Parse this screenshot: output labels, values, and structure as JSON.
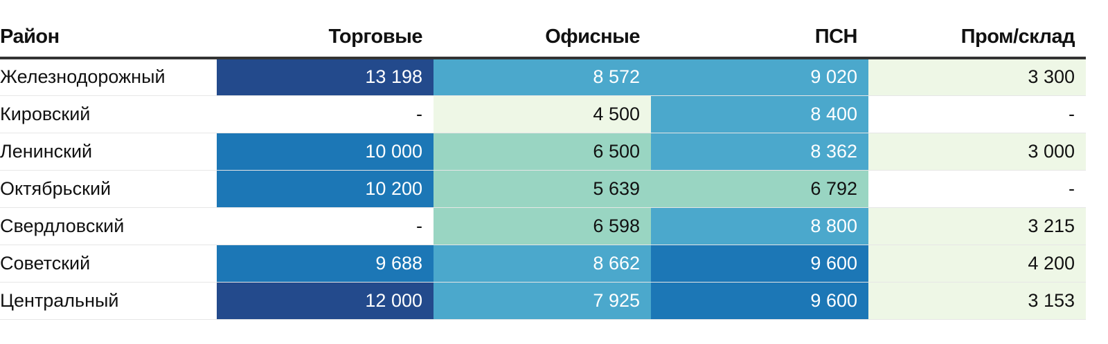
{
  "chart_data": {
    "type": "heatmap",
    "columns": [
      "Район",
      "Торговые",
      "Офисные",
      "ПСН",
      "Пром/склад"
    ],
    "rows": [
      {
        "label": "Железнодорожный",
        "values": [
          13198,
          8572,
          9020,
          3300
        ],
        "display": [
          "13 198",
          "8 572",
          "9 020",
          "3 300"
        ]
      },
      {
        "label": "Кировский",
        "values": [
          null,
          4500,
          8400,
          null
        ],
        "display": [
          "-",
          "4 500",
          "8 400",
          "-"
        ]
      },
      {
        "label": "Ленинский",
        "values": [
          10000,
          6500,
          8362,
          3000
        ],
        "display": [
          "10 000",
          "6 500",
          "8 362",
          "3 000"
        ]
      },
      {
        "label": "Октябрьский",
        "values": [
          10200,
          5639,
          6792,
          null
        ],
        "display": [
          "10 200",
          "5 639",
          "6 792",
          "-"
        ]
      },
      {
        "label": "Свердловский",
        "values": [
          null,
          6598,
          8800,
          3215
        ],
        "display": [
          "-",
          "6 598",
          "8 800",
          "3 215"
        ]
      },
      {
        "label": "Советский",
        "values": [
          9688,
          8662,
          9600,
          4200
        ],
        "display": [
          "9 688",
          "8 662",
          "9 600",
          "4 200"
        ]
      },
      {
        "label": "Центральный",
        "values": [
          12000,
          7925,
          9600,
          3153
        ],
        "display": [
          "12 000",
          "7 925",
          "9 600",
          "3 153"
        ]
      }
    ],
    "color_scale": [
      {
        "min": 0,
        "max": 4999.99,
        "color": "#eef7e6",
        "text": "#111111"
      },
      {
        "min": 5000,
        "max": 7499.99,
        "color": "#99d5c2",
        "text": "#111111"
      },
      {
        "min": 7500,
        "max": 9099.99,
        "color": "#4ba8cc",
        "text": "#ffffff"
      },
      {
        "min": 9100,
        "max": 11999.99,
        "color": "#1c77b6",
        "text": "#ffffff"
      },
      {
        "min": 12000,
        "max": 999999,
        "color": "#234a8c",
        "text": "#ffffff"
      }
    ],
    "missing_color": "#ffffff"
  }
}
